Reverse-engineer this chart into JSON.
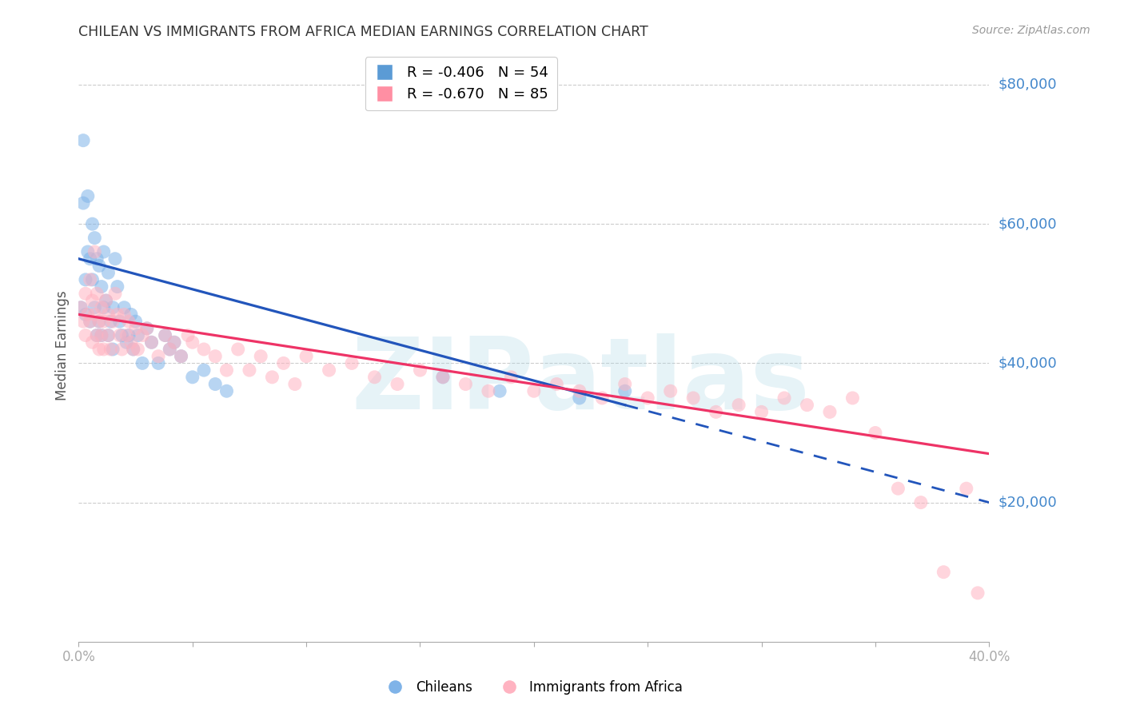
{
  "title": "CHILEAN VS IMMIGRANTS FROM AFRICA MEDIAN EARNINGS CORRELATION CHART",
  "source": "Source: ZipAtlas.com",
  "ylabel": "Median Earnings",
  "xlim": [
    0.0,
    0.4
  ],
  "ylim": [
    0,
    85000
  ],
  "yticks": [
    20000,
    40000,
    60000,
    80000
  ],
  "xtick_positions": [
    0.0,
    0.05,
    0.1,
    0.15,
    0.2,
    0.25,
    0.3,
    0.35,
    0.4
  ],
  "xtick_edge_labels": {
    "0.0": "0.0%",
    "0.40": "40.0%"
  },
  "ytick_labels": [
    "$20,000",
    "$40,000",
    "$60,000",
    "$80,000"
  ],
  "background_color": "#ffffff",
  "grid_color": "#cccccc",
  "legend_r1_color": "#5b9bd5",
  "legend_r1_text": "R = -0.406   N = 54",
  "legend_r2_color": "#ff8fa3",
  "legend_r2_text": "R = -0.670   N = 85",
  "legend_label1": "Chileans",
  "legend_label2": "Immigrants from Africa",
  "blue_scatter": "#7fb3e8",
  "pink_scatter": "#ffb3c1",
  "trend_blue": "#2255bb",
  "trend_pink": "#ee3366",
  "watermark_color": "#add8e6",
  "ytick_label_color": "#4488cc",
  "chileans_x": [
    0.001,
    0.002,
    0.002,
    0.003,
    0.003,
    0.004,
    0.004,
    0.005,
    0.005,
    0.006,
    0.006,
    0.007,
    0.007,
    0.008,
    0.008,
    0.009,
    0.009,
    0.01,
    0.01,
    0.011,
    0.011,
    0.012,
    0.013,
    0.013,
    0.014,
    0.015,
    0.015,
    0.016,
    0.017,
    0.018,
    0.019,
    0.02,
    0.021,
    0.022,
    0.023,
    0.024,
    0.025,
    0.026,
    0.028,
    0.03,
    0.032,
    0.035,
    0.038,
    0.04,
    0.042,
    0.045,
    0.05,
    0.055,
    0.06,
    0.065,
    0.16,
    0.185,
    0.22,
    0.24
  ],
  "chileans_y": [
    48000,
    72000,
    63000,
    52000,
    47000,
    64000,
    56000,
    55000,
    46000,
    60000,
    52000,
    58000,
    48000,
    55000,
    44000,
    54000,
    46000,
    51000,
    44000,
    56000,
    48000,
    49000,
    53000,
    44000,
    46000,
    48000,
    42000,
    55000,
    51000,
    46000,
    44000,
    48000,
    43000,
    44000,
    47000,
    42000,
    46000,
    44000,
    40000,
    45000,
    43000,
    40000,
    44000,
    42000,
    43000,
    41000,
    38000,
    39000,
    37000,
    36000,
    38000,
    36000,
    35000,
    36000
  ],
  "africa_x": [
    0.001,
    0.002,
    0.003,
    0.003,
    0.004,
    0.005,
    0.005,
    0.006,
    0.006,
    0.007,
    0.007,
    0.008,
    0.008,
    0.009,
    0.009,
    0.01,
    0.01,
    0.011,
    0.011,
    0.012,
    0.013,
    0.013,
    0.014,
    0.015,
    0.016,
    0.017,
    0.018,
    0.019,
    0.02,
    0.021,
    0.022,
    0.023,
    0.024,
    0.025,
    0.026,
    0.028,
    0.03,
    0.032,
    0.035,
    0.038,
    0.04,
    0.042,
    0.045,
    0.048,
    0.05,
    0.055,
    0.06,
    0.065,
    0.07,
    0.075,
    0.08,
    0.085,
    0.09,
    0.095,
    0.1,
    0.11,
    0.12,
    0.13,
    0.14,
    0.15,
    0.16,
    0.17,
    0.18,
    0.19,
    0.2,
    0.21,
    0.22,
    0.23,
    0.24,
    0.25,
    0.26,
    0.27,
    0.28,
    0.29,
    0.3,
    0.31,
    0.32,
    0.33,
    0.34,
    0.35,
    0.36,
    0.37,
    0.38,
    0.39,
    0.395
  ],
  "africa_y": [
    48000,
    46000,
    50000,
    44000,
    47000,
    52000,
    46000,
    49000,
    43000,
    56000,
    47000,
    44000,
    50000,
    46000,
    42000,
    48000,
    44000,
    46000,
    42000,
    49000,
    44000,
    47000,
    42000,
    46000,
    50000,
    47000,
    44000,
    42000,
    47000,
    44000,
    46000,
    43000,
    42000,
    45000,
    42000,
    44000,
    45000,
    43000,
    41000,
    44000,
    42000,
    43000,
    41000,
    44000,
    43000,
    42000,
    41000,
    39000,
    42000,
    39000,
    41000,
    38000,
    40000,
    37000,
    41000,
    39000,
    40000,
    38000,
    37000,
    39000,
    38000,
    37000,
    36000,
    38000,
    36000,
    37000,
    36000,
    35000,
    37000,
    35000,
    36000,
    35000,
    33000,
    34000,
    33000,
    35000,
    34000,
    33000,
    35000,
    30000,
    22000,
    20000,
    10000,
    22000,
    7000
  ]
}
